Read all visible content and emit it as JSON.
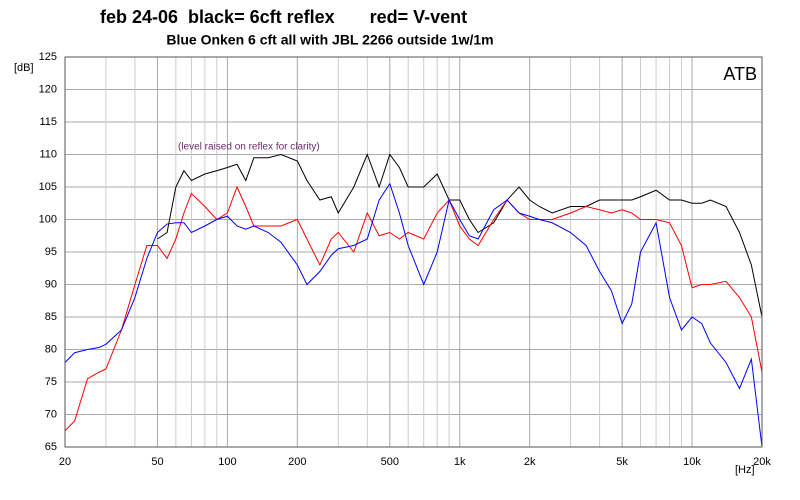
{
  "chart_data": {
    "type": "line",
    "title": "feb 24-06  black= 6cft reflex       red= V-vent",
    "subtitle": "Blue Onken 6 cft all with JBL 2266 outside 1w/1m",
    "annotation": "(level raised on reflex for clarity)",
    "corner_label": "ATB",
    "y_label": "[dB]",
    "x_label": "[Hz]",
    "xscale": "log",
    "grid": true,
    "xlim": [
      20,
      20000
    ],
    "ylim": [
      65,
      125
    ],
    "xticks": [
      20,
      50,
      100,
      200,
      500,
      {
        "value": 1000,
        "label": "1k"
      },
      {
        "value": 2000,
        "label": "2k"
      },
      {
        "value": 5000,
        "label": "5k"
      },
      {
        "value": 10000,
        "label": "10k"
      },
      {
        "value": 20000,
        "label": "20k"
      }
    ],
    "xminorticks": [
      30,
      40,
      60,
      70,
      80,
      90,
      300,
      400,
      600,
      700,
      800,
      900,
      3000,
      4000,
      6000,
      7000,
      8000,
      9000
    ],
    "yticks": [
      65,
      70,
      75,
      80,
      85,
      90,
      95,
      100,
      105,
      110,
      115,
      120,
      125
    ],
    "x": [
      20,
      22,
      25,
      28,
      30,
      35,
      40,
      45,
      50,
      55,
      60,
      65,
      70,
      80,
      90,
      100,
      110,
      120,
      130,
      150,
      170,
      200,
      220,
      250,
      280,
      300,
      350,
      400,
      450,
      500,
      550,
      600,
      700,
      800,
      900,
      1000,
      1100,
      1200,
      1400,
      1600,
      1800,
      2000,
      2200,
      2500,
      3000,
      3500,
      4000,
      4500,
      5000,
      5500,
      6000,
      7000,
      8000,
      9000,
      10000,
      11000,
      12000,
      14000,
      16000,
      18000,
      20000
    ],
    "series": [
      {
        "color": "#000000",
        "values": [
          null,
          null,
          null,
          null,
          null,
          null,
          null,
          null,
          97,
          98,
          105,
          107.5,
          106,
          107,
          107.5,
          108,
          108.5,
          106,
          109.5,
          109.5,
          110,
          109,
          106,
          103,
          103.5,
          101,
          105,
          110,
          105,
          110,
          108,
          105,
          105,
          107,
          103,
          103,
          100,
          98,
          99.5,
          103,
          105,
          103,
          102,
          101,
          102,
          102,
          103,
          103,
          103,
          103,
          103.5,
          104.5,
          103,
          103,
          102.5,
          102.5,
          103,
          102,
          98,
          93,
          85
        ]
      },
      {
        "color": "#ff0000",
        "values": [
          67.5,
          69,
          75.5,
          76.5,
          77,
          83,
          90,
          96,
          96,
          94,
          97,
          101,
          104,
          102,
          100,
          101,
          105,
          102,
          99,
          99,
          99,
          100,
          97,
          93,
          97,
          98,
          95,
          101,
          97.5,
          98,
          97,
          98,
          97,
          101,
          103,
          99,
          97,
          96,
          100,
          103,
          101,
          100,
          100,
          100,
          101,
          102,
          101.5,
          101,
          101.5,
          101,
          100,
          100,
          99.5,
          96,
          89.5,
          90,
          90,
          90.5,
          88,
          85,
          76.5
        ]
      },
      {
        "color": "#0000ff",
        "values": [
          78,
          79.5,
          80,
          80.3,
          80.8,
          83,
          88,
          94,
          98,
          99.3,
          99.5,
          99.5,
          98,
          99,
          100,
          100.5,
          99,
          98.5,
          99,
          98,
          96.5,
          93,
          90,
          92,
          94.5,
          95.5,
          96,
          97,
          103,
          105.5,
          101,
          96,
          90,
          95,
          103,
          100,
          97.5,
          97,
          101.5,
          103,
          101,
          100.5,
          100,
          99.5,
          98,
          96,
          92,
          89,
          84,
          87,
          95,
          99.5,
          88,
          83,
          85,
          84,
          81,
          78,
          74,
          78.5,
          65
        ]
      }
    ]
  }
}
